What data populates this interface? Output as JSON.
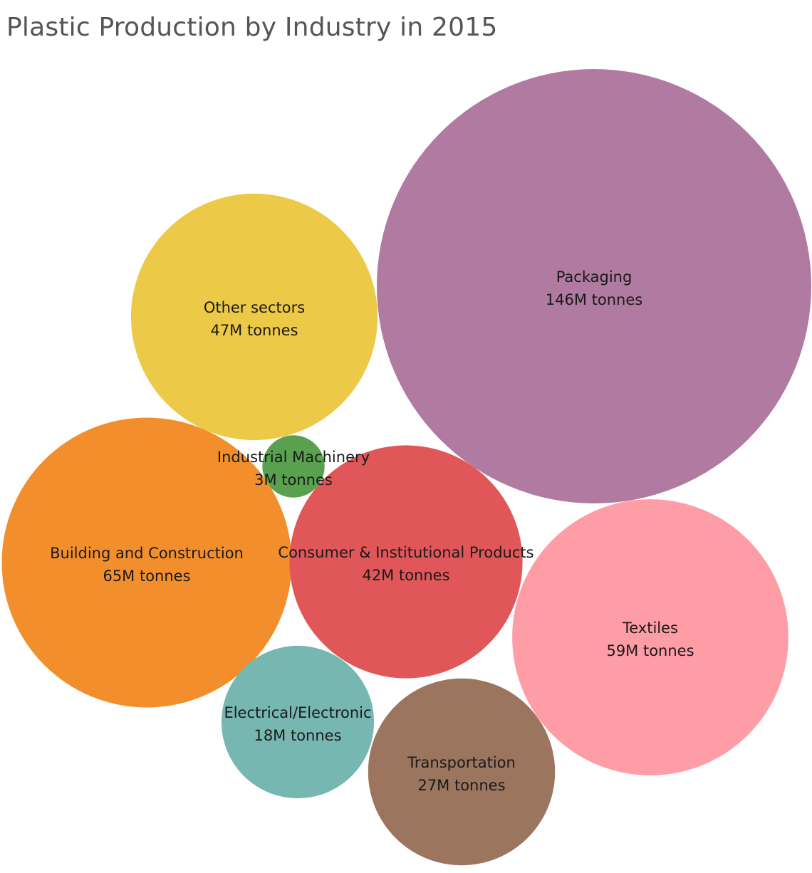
{
  "chart_data": {
    "type": "bubble",
    "title": "Plastic Production by Industry in 2015",
    "unit_label": "tonnes",
    "items": [
      {
        "name": "Packaging",
        "value": 146,
        "value_label": "146M tonnes",
        "color": "#b07aa1"
      },
      {
        "name": "Other sectors",
        "value": 47,
        "value_label": "47M tonnes",
        "color": "#edc948"
      },
      {
        "name": "Industrial Machinery",
        "value": 3,
        "value_label": "3M tonnes",
        "color": "#59a14f"
      },
      {
        "name": "Building and Construction",
        "value": 65,
        "value_label": "65M tonnes",
        "color": "#f28e2b"
      },
      {
        "name": "Consumer & Institutional Products",
        "value": 42,
        "value_label": "42M tonnes",
        "color": "#e15759"
      },
      {
        "name": "Textiles",
        "value": 59,
        "value_label": "59M tonnes",
        "color": "#ff9da7"
      },
      {
        "name": "Electrical/Electronic",
        "value": 18,
        "value_label": "18M tonnes",
        "color": "#76b7b2"
      },
      {
        "name": "Transportation",
        "value": 27,
        "value_label": "27M tonnes",
        "color": "#9c755f"
      }
    ]
  }
}
